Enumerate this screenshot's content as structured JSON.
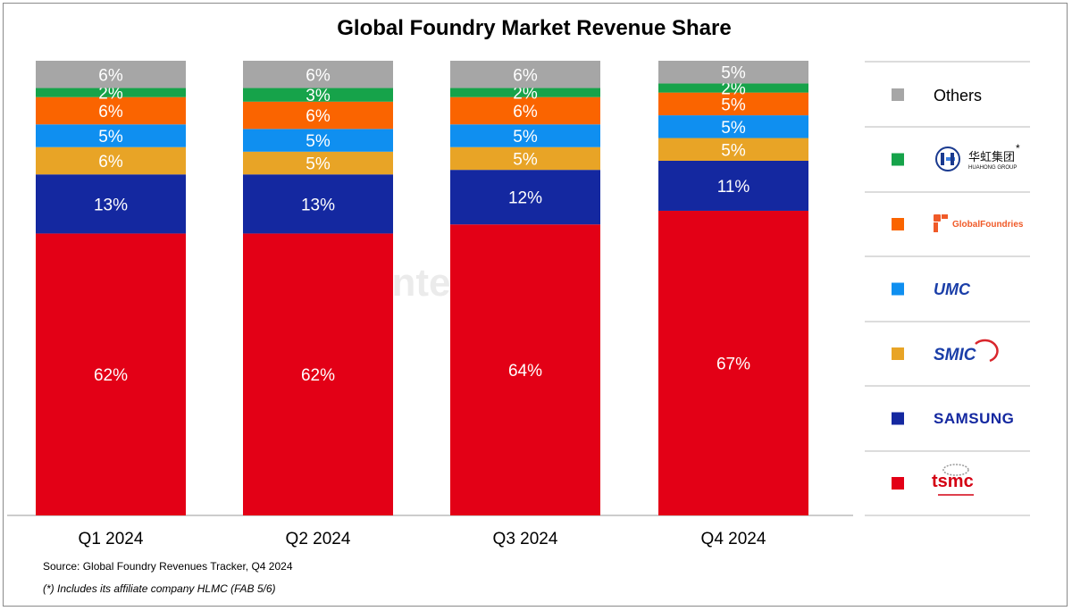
{
  "chart_data": {
    "type": "bar",
    "stacked": true,
    "title": "Global Foundry Market Revenue Share",
    "categories": [
      "Q1 2024",
      "Q2 2024",
      "Q3 2024",
      "Q4 2024"
    ],
    "ylim": [
      0,
      100
    ],
    "series": [
      {
        "name": "tsmc",
        "color": "#e30016",
        "values": [
          62,
          62,
          64,
          67
        ],
        "labels": [
          "62%",
          "62%",
          "64%",
          "67%"
        ]
      },
      {
        "name": "SAMSUNG",
        "color": "#1428a0",
        "values": [
          13,
          13,
          12,
          11
        ],
        "labels": [
          "13%",
          "13%",
          "12%",
          "11%"
        ]
      },
      {
        "name": "SMIC",
        "color": "#e8a426",
        "values": [
          6,
          5,
          5,
          5
        ],
        "labels": [
          "6%",
          "5%",
          "5%",
          "5%"
        ]
      },
      {
        "name": "UMC",
        "color": "#0f8ff0",
        "values": [
          5,
          5,
          5,
          5
        ],
        "labels": [
          "5%",
          "5%",
          "5%",
          "5%"
        ]
      },
      {
        "name": "GlobalFoundries",
        "color": "#fa6400",
        "values": [
          6,
          6,
          6,
          5
        ],
        "labels": [
          "6%",
          "6%",
          "6%",
          "5%"
        ]
      },
      {
        "name": "华虹集团 HUAHONG GROUP",
        "color": "#16a34a",
        "values": [
          2,
          3,
          2,
          2
        ],
        "labels": [
          "2%",
          "3%",
          "2%",
          "2%"
        ]
      },
      {
        "name": "Others",
        "color": "#a6a6a6",
        "values": [
          6,
          6,
          6,
          5
        ],
        "labels": [
          "6%",
          "6%",
          "6%",
          "5%"
        ]
      }
    ],
    "legend": "right",
    "grid": false
  },
  "legend_logos": {
    "huahong_cn": "华虹集团",
    "huahong_en": "HUAHONG GROUP",
    "huahong_mark": "*",
    "globalfoundries": "GlobalFoundries",
    "umc": "UMC",
    "smic": "SMIC",
    "samsung": "SAMSUNG",
    "tsmc": "tsmc"
  },
  "watermark": "Counterpoint",
  "source": "Source: Global Foundry Revenues Tracker, Q4 2024",
  "footnote": "(*) Includes its affiliate company HLMC (FAB 5/6)"
}
